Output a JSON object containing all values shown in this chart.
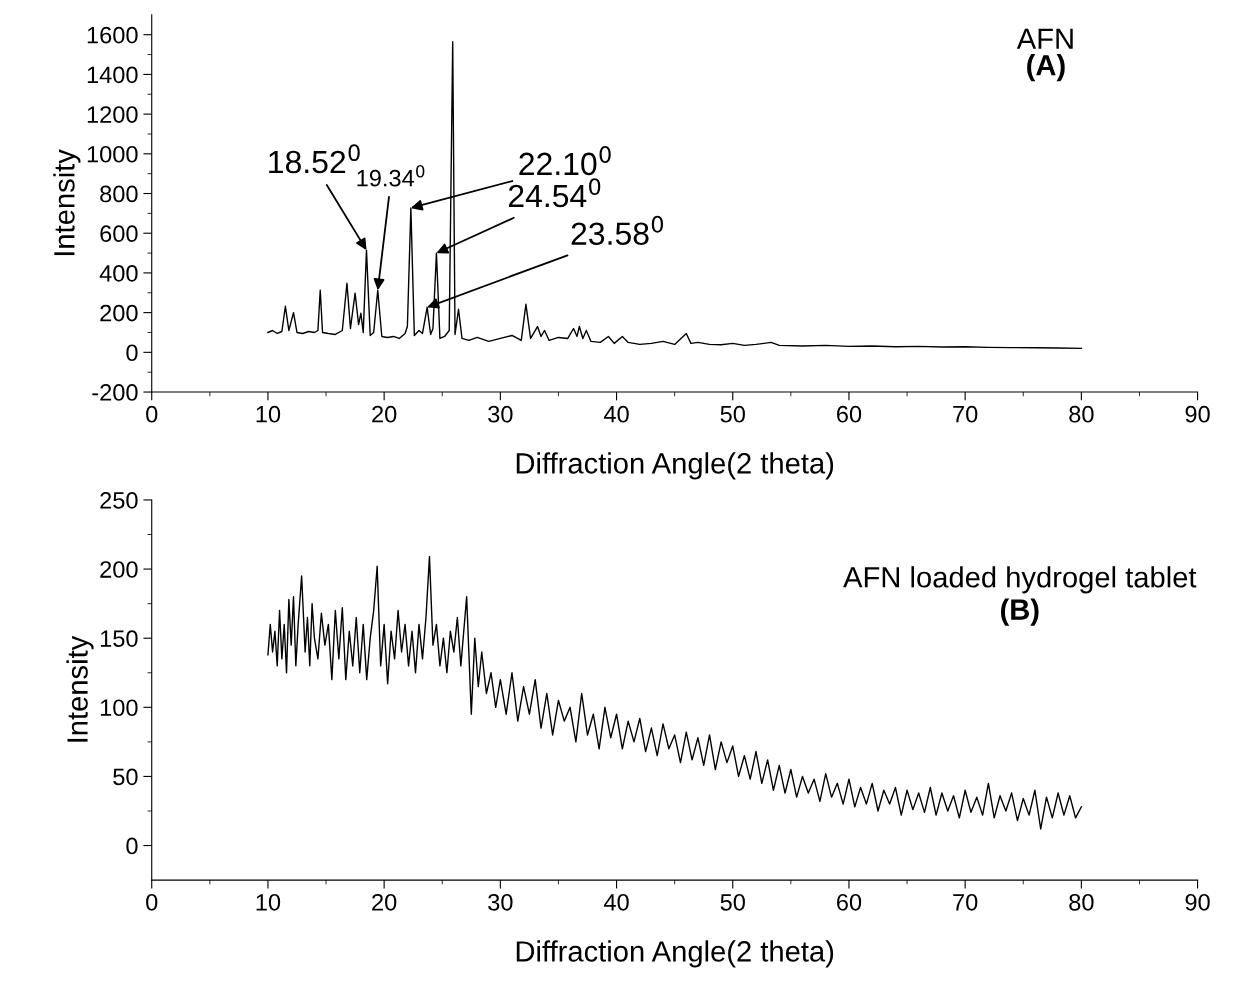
{
  "chart_data": [
    {
      "type": "line",
      "xlabel": "Diffraction Angle(2 theta)",
      "ylabel": "Intensity",
      "xlim": [
        0,
        90
      ],
      "ylim": [
        -200,
        1700
      ],
      "xticks": [
        0,
        10,
        20,
        30,
        40,
        50,
        60,
        70,
        80,
        90
      ],
      "yticks": [
        -200,
        0,
        200,
        400,
        600,
        800,
        1000,
        1200,
        1400,
        1600
      ],
      "grid": false,
      "legend": false,
      "marker": "none",
      "line_style": "solid",
      "series": [
        {
          "color": "#000000",
          "x": [
            10.0,
            10.4,
            10.8,
            11.2,
            11.5,
            11.8,
            12.2,
            12.5,
            13.0,
            13.5,
            14.0,
            14.3,
            14.5,
            14.7,
            15.2,
            15.8,
            16.4,
            16.8,
            17.1,
            17.5,
            17.8,
            18.0,
            18.2,
            18.48,
            18.8,
            19.1,
            19.45,
            19.8,
            20.3,
            20.8,
            21.3,
            21.8,
            22.0,
            22.3,
            22.6,
            23.0,
            23.3,
            23.7,
            24.0,
            24.2,
            24.5,
            24.8,
            25.2,
            25.6,
            25.9,
            26.1,
            26.4,
            26.7,
            27.3,
            28.0,
            29.0,
            30.0,
            31.0,
            31.8,
            32.2,
            32.6,
            33.2,
            33.5,
            33.8,
            34.2,
            35.0,
            35.8,
            36.3,
            36.6,
            36.8,
            37.1,
            37.4,
            37.8,
            38.6,
            39.3,
            39.8,
            40.5,
            41.0,
            42.0,
            43.0,
            44.0,
            45.0,
            46.0,
            46.4,
            47.0,
            48.0,
            49.0,
            50.0,
            51.0,
            52.0,
            53.3,
            54.0,
            56.0,
            58.0,
            60.0,
            62.0,
            64.0,
            66.0,
            68.0,
            70.0,
            72.0,
            74.0,
            76.0,
            78.0,
            80.0
          ],
          "values": [
            100,
            110,
            95,
            105,
            232,
            110,
            200,
            100,
            95,
            105,
            100,
            110,
            313,
            100,
            95,
            90,
            110,
            348,
            120,
            298,
            140,
            197,
            100,
            515,
            85,
            100,
            313,
            80,
            75,
            80,
            70,
            95,
            130,
            727,
            85,
            110,
            95,
            227,
            90,
            120,
            500,
            70,
            80,
            110,
            1565,
            90,
            217,
            70,
            60,
            75,
            55,
            70,
            85,
            60,
            242,
            70,
            130,
            80,
            110,
            60,
            75,
            70,
            120,
            80,
            130,
            70,
            110,
            55,
            50,
            80,
            45,
            80,
            50,
            40,
            45,
            55,
            40,
            95,
            45,
            50,
            40,
            38,
            45,
            35,
            40,
            50,
            35,
            32,
            35,
            30,
            32,
            28,
            30,
            27,
            28,
            25,
            24,
            23,
            22,
            20
          ]
        }
      ],
      "annotations": [
        {
          "text": "18.52$^{0}$",
          "x": 18.48,
          "y": 515
        },
        {
          "text": "19.34$^{0}$",
          "x": 19.45,
          "y": 313
        },
        {
          "text": "22.10$^{0}$",
          "x": 22.3,
          "y": 727
        },
        {
          "text": "24.54$^{0}$",
          "x": 24.5,
          "y": 500
        },
        {
          "text": "23.58$^{0}$",
          "x": 23.7,
          "y": 227
        },
        "AFN",
        "(A)"
      ]
    },
    {
      "type": "line",
      "xlabel": "Diffraction Angle(2 theta)",
      "ylabel": "Intensity",
      "xlim": [
        0,
        90
      ],
      "ylim": [
        -25,
        250
      ],
      "xticks": [
        0,
        10,
        20,
        30,
        40,
        50,
        60,
        70,
        80,
        90
      ],
      "yticks": [
        0,
        50,
        100,
        150,
        200,
        250
      ],
      "grid": false,
      "legend": false,
      "marker": "none",
      "line_style": "solid",
      "series": [
        {
          "color": "#000000",
          "x": [
            10.0,
            10.2,
            10.4,
            10.6,
            10.8,
            11.0,
            11.2,
            11.4,
            11.6,
            11.8,
            12.0,
            12.2,
            12.4,
            12.6,
            12.9,
            13.2,
            13.4,
            13.6,
            13.8,
            14.0,
            14.3,
            14.6,
            14.9,
            15.2,
            15.5,
            15.8,
            16.1,
            16.4,
            16.7,
            17.0,
            17.3,
            17.6,
            17.9,
            18.2,
            18.5,
            18.8,
            19.1,
            19.4,
            19.7,
            20.0,
            20.3,
            20.6,
            20.9,
            21.2,
            21.5,
            21.8,
            22.1,
            22.4,
            22.7,
            23.0,
            23.3,
            23.6,
            23.9,
            24.2,
            24.5,
            24.8,
            25.1,
            25.4,
            25.7,
            26.0,
            26.3,
            26.6,
            27.1,
            27.5,
            27.8,
            28.1,
            28.4,
            28.8,
            29.2,
            29.6,
            30.0,
            30.5,
            31.0,
            31.5,
            32.0,
            32.5,
            33.0,
            33.5,
            34.0,
            34.5,
            35.0,
            35.5,
            36.0,
            36.5,
            37.0,
            37.5,
            38.0,
            38.5,
            39.0,
            39.5,
            40.0,
            40.5,
            41.0,
            41.5,
            42.0,
            42.5,
            43.0,
            43.5,
            44.0,
            44.5,
            45.0,
            45.5,
            46.0,
            46.5,
            47.0,
            47.5,
            48.0,
            48.5,
            49.0,
            49.5,
            50.0,
            50.5,
            51.0,
            51.5,
            52.0,
            52.5,
            53.0,
            53.5,
            54.0,
            54.5,
            55.0,
            55.5,
            56.0,
            56.5,
            57.0,
            57.5,
            58.0,
            58.5,
            59.0,
            59.5,
            60.0,
            60.5,
            61.0,
            61.5,
            62.0,
            62.5,
            63.0,
            63.5,
            64.0,
            64.5,
            65.0,
            65.5,
            66.0,
            66.5,
            67.0,
            67.5,
            68.0,
            68.5,
            69.0,
            69.5,
            70.0,
            70.5,
            71.0,
            71.5,
            72.0,
            72.5,
            73.0,
            73.5,
            74.0,
            74.5,
            75.0,
            75.5,
            76.0,
            76.5,
            77.0,
            77.5,
            78.0,
            78.5,
            79.0,
            79.5,
            80.0
          ],
          "values": [
            138,
            160,
            140,
            155,
            130,
            170,
            135,
            160,
            125,
            178,
            145,
            180,
            130,
            160,
            195,
            140,
            165,
            130,
            175,
            150,
            135,
            168,
            145,
            160,
            120,
            170,
            135,
            172,
            120,
            155,
            130,
            165,
            125,
            160,
            120,
            150,
            170,
            202,
            130,
            160,
            117,
            155,
            135,
            170,
            140,
            160,
            130,
            155,
            125,
            160,
            135,
            165,
            209,
            145,
            160,
            130,
            150,
            125,
            155,
            140,
            165,
            130,
            180,
            95,
            150,
            115,
            140,
            110,
            125,
            100,
            120,
            95,
            125,
            90,
            115,
            95,
            120,
            85,
            110,
            80,
            105,
            90,
            100,
            75,
            110,
            80,
            95,
            70,
            100,
            78,
            95,
            70,
            90,
            75,
            92,
            68,
            85,
            65,
            88,
            70,
            80,
            60,
            82,
            62,
            78,
            58,
            80,
            55,
            75,
            60,
            72,
            50,
            65,
            48,
            68,
            45,
            62,
            40,
            58,
            38,
            55,
            35,
            50,
            38,
            48,
            32,
            52,
            35,
            45,
            30,
            48,
            28,
            42,
            30,
            45,
            25,
            40,
            30,
            42,
            22,
            40,
            26,
            38,
            24,
            42,
            22,
            38,
            25,
            36,
            20,
            40,
            24,
            35,
            22,
            45,
            20,
            36,
            25,
            38,
            18,
            34,
            22,
            40,
            12,
            35,
            20,
            38,
            22,
            36,
            20,
            28
          ]
        }
      ],
      "annotations": [
        "AFN loaded hydrogel tablet",
        "(B)"
      ]
    }
  ]
}
